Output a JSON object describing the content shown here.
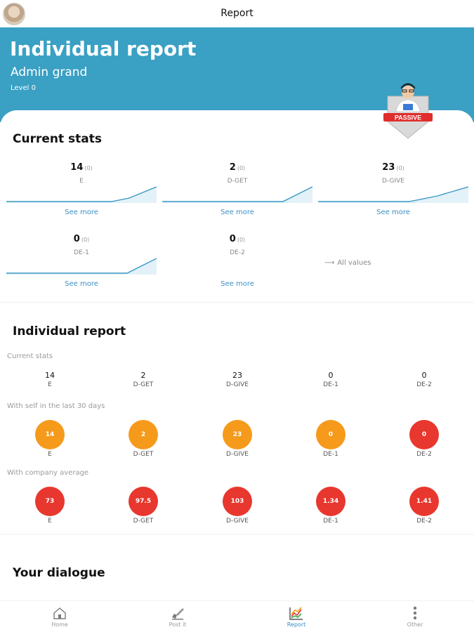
{
  "header": {
    "title": "Report"
  },
  "hero": {
    "title": "Individual report",
    "name": "Admin grand",
    "level": "Level 0",
    "badge_text": "PASSIVE"
  },
  "current_stats": {
    "title": "Current stats",
    "see_more": "See more",
    "all_values": "All values",
    "items": [
      {
        "value": "14",
        "delta": "(0)",
        "label": "E"
      },
      {
        "value": "2",
        "delta": "(0)",
        "label": "D-GET"
      },
      {
        "value": "23",
        "delta": "(0)",
        "label": "D-GIVE"
      },
      {
        "value": "0",
        "delta": "(0)",
        "label": "DE-1"
      },
      {
        "value": "0",
        "delta": "(0)",
        "label": "DE-2"
      }
    ]
  },
  "individual_report": {
    "title": "Individual report",
    "current_label": "Current stats",
    "self_label": "With self in the last 30 days",
    "company_label": "With company average",
    "current": [
      {
        "value": "14",
        "label": "E"
      },
      {
        "value": "2",
        "label": "D-GET"
      },
      {
        "value": "23",
        "label": "D-GIVE"
      },
      {
        "value": "0",
        "label": "DE-1"
      },
      {
        "value": "0",
        "label": "DE-2"
      }
    ],
    "self": [
      {
        "value": "14",
        "label": "E",
        "color": "#f69a1c"
      },
      {
        "value": "2",
        "label": "D-GET",
        "color": "#f69a1c"
      },
      {
        "value": "23",
        "label": "D-GIVE",
        "color": "#f69a1c"
      },
      {
        "value": "0",
        "label": "DE-1",
        "color": "#f69a1c"
      },
      {
        "value": "0",
        "label": "DE-2",
        "color": "#e8372e"
      }
    ],
    "company": [
      {
        "value": "73",
        "label": "E",
        "color": "#e8372e"
      },
      {
        "value": "97.5",
        "label": "D-GET",
        "color": "#e8372e"
      },
      {
        "value": "103",
        "label": "D-GIVE",
        "color": "#e8372e"
      },
      {
        "value": "1.34",
        "label": "DE-1",
        "color": "#e8372e"
      },
      {
        "value": "1.41",
        "label": "DE-2",
        "color": "#e8372e"
      }
    ]
  },
  "dialogue": {
    "title": "Your dialogue"
  },
  "nav": {
    "items": [
      {
        "label": "Home",
        "icon": "home-icon"
      },
      {
        "label": "Post it",
        "icon": "post-it-icon"
      },
      {
        "label": "Report",
        "icon": "report-icon"
      },
      {
        "label": "Other",
        "icon": "more-icon"
      }
    ]
  },
  "colors": {
    "hero": "#3aa0c4",
    "link": "#3c8ec2",
    "orange": "#f69a1c",
    "red": "#e8372e"
  }
}
